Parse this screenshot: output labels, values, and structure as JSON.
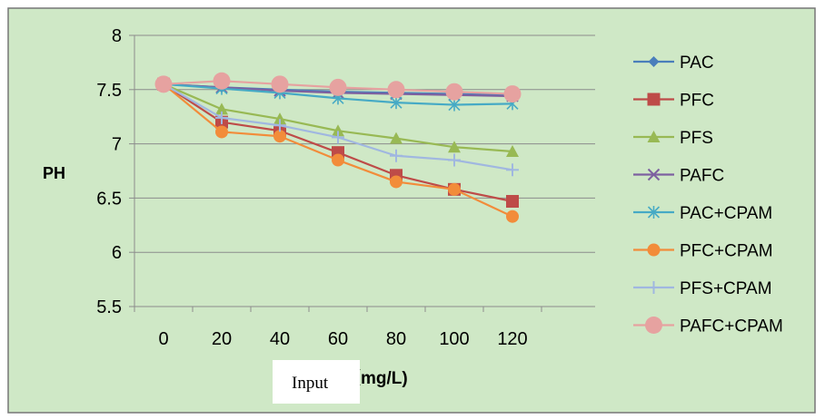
{
  "chart_data": {
    "type": "line",
    "title": "",
    "xlabel": "（mg/L)",
    "ylabel": "PH",
    "overlay_label": "Input",
    "categories": [
      "0",
      "20",
      "40",
      "60",
      "80",
      "100",
      "120"
    ],
    "ylim": [
      5.5,
      8
    ],
    "yticks": [
      "5.5",
      "6",
      "6.5",
      "7",
      "7.5",
      "8"
    ],
    "grid": "horizontal",
    "legend_position": "right",
    "background_color": "#cfe8c6",
    "series": [
      {
        "name": "PAC",
        "color": "#4a7ebb",
        "marker": "diamond",
        "values": [
          7.55,
          7.52,
          7.5,
          7.48,
          7.47,
          7.46,
          7.45
        ]
      },
      {
        "name": "PFC",
        "color": "#be4b48",
        "marker": "square",
        "values": [
          7.55,
          7.2,
          7.12,
          6.92,
          6.71,
          6.58,
          6.47
        ]
      },
      {
        "name": "PFS",
        "color": "#98b954",
        "marker": "triangle",
        "values": [
          7.55,
          7.32,
          7.23,
          7.12,
          7.05,
          6.97,
          6.93
        ]
      },
      {
        "name": "PAFC",
        "color": "#7d60a0",
        "marker": "x",
        "values": [
          7.55,
          7.52,
          7.49,
          7.47,
          7.46,
          7.45,
          7.44
        ]
      },
      {
        "name": "PAC+CPAM",
        "color": "#46aac5",
        "marker": "star",
        "values": [
          7.55,
          7.51,
          7.47,
          7.42,
          7.38,
          7.36,
          7.37
        ]
      },
      {
        "name": "PFC+CPAM",
        "color": "#f28c3a",
        "marker": "circle",
        "values": [
          7.55,
          7.11,
          7.07,
          6.85,
          6.65,
          6.58,
          6.33
        ]
      },
      {
        "name": "PFS+CPAM",
        "color": "#a0b7e0",
        "marker": "plus",
        "values": [
          7.55,
          7.24,
          7.17,
          7.06,
          6.89,
          6.85,
          6.76
        ]
      },
      {
        "name": "PAFC+CPAM",
        "color": "#e6a2a0",
        "marker": "bigcircle",
        "values": [
          7.55,
          7.58,
          7.55,
          7.52,
          7.5,
          7.48,
          7.46
        ]
      }
    ]
  }
}
